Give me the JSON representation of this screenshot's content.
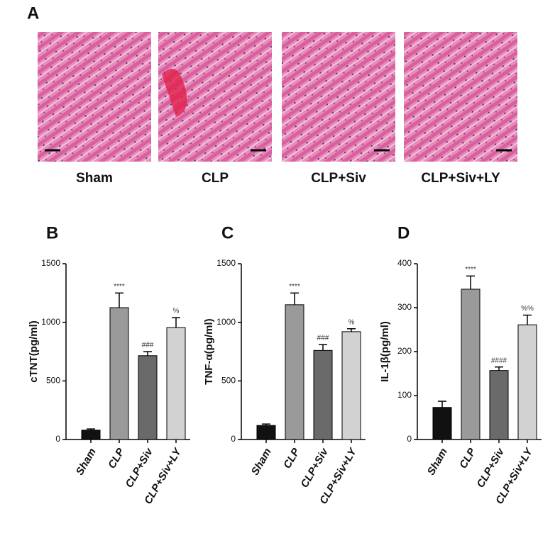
{
  "panel_a": {
    "label": "A",
    "images": [
      "Sham",
      "CLP",
      "CLP+Siv",
      "CLP+Siv+LY"
    ]
  },
  "chart_data": [
    {
      "type": "bar",
      "panel_label": "B",
      "y_label": "cTNT(pg/ml)",
      "categories": [
        "Sham",
        "CLP",
        "CLP+Siv",
        "CLP+Siv+LY"
      ],
      "values": [
        80,
        1125,
        715,
        955
      ],
      "errors": [
        10,
        125,
        35,
        85
      ],
      "annotations": [
        null,
        "****",
        "###",
        "%"
      ],
      "colors": [
        "#111111",
        "#9a9a9a",
        "#6a6a6a",
        "#d2d2d2"
      ],
      "ylim": [
        0,
        1500
      ],
      "yticks": [
        0,
        500,
        1000,
        1500
      ]
    },
    {
      "type": "bar",
      "panel_label": "C",
      "y_label": "TNF-α(pg/ml)",
      "categories": [
        "Sham",
        "CLP",
        "CLP+Siv",
        "CLP+Siv+LY"
      ],
      "values": [
        120,
        1150,
        760,
        920
      ],
      "errors": [
        12,
        100,
        50,
        25
      ],
      "annotations": [
        null,
        "****",
        "###",
        "%"
      ],
      "colors": [
        "#111111",
        "#9a9a9a",
        "#6a6a6a",
        "#d2d2d2"
      ],
      "ylim": [
        0,
        1500
      ],
      "yticks": [
        0,
        500,
        1000,
        1500
      ]
    },
    {
      "type": "bar",
      "panel_label": "D",
      "y_label": "IL-1β(pg/ml)",
      "categories": [
        "Sham",
        "CLP",
        "CLP+Siv",
        "CLP+Siv+LY"
      ],
      "values": [
        73,
        342,
        157,
        261
      ],
      "errors": [
        14,
        30,
        8,
        22
      ],
      "annotations": [
        null,
        "****",
        "####",
        "%%"
      ],
      "colors": [
        "#111111",
        "#9a9a9a",
        "#6a6a6a",
        "#d2d2d2"
      ],
      "ylim": [
        0,
        400
      ],
      "yticks": [
        0,
        100,
        200,
        300,
        400
      ]
    }
  ]
}
